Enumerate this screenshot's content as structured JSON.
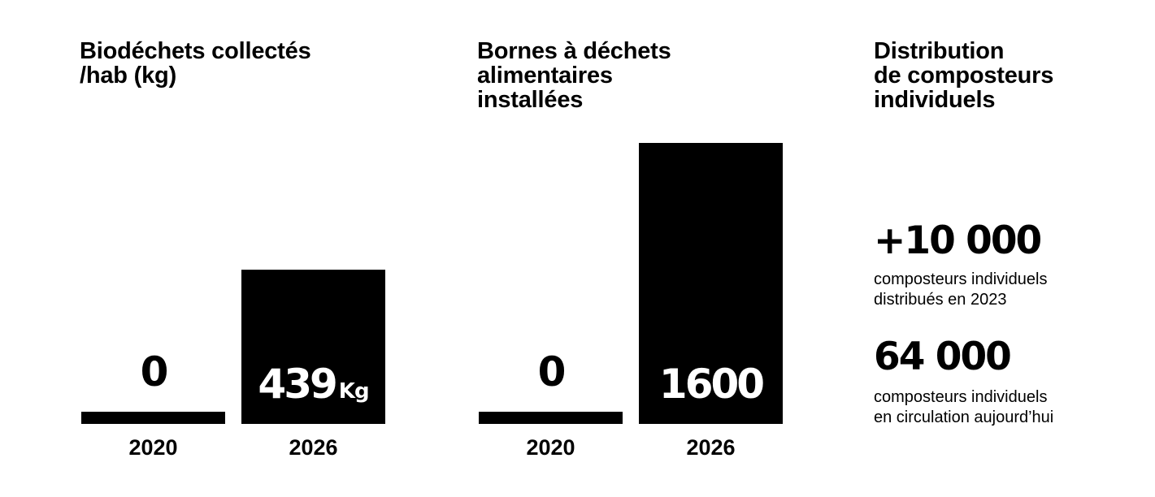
{
  "chart_data": [
    {
      "type": "bar",
      "title_lines": [
        "Biodéchets collectés",
        "/hab (kg)"
      ],
      "categories": [
        "2020",
        "2026"
      ],
      "values": [
        0,
        439
      ],
      "value_labels": [
        "0",
        "439"
      ],
      "unit": "Kg",
      "ylim": [
        0,
        800
      ],
      "grid": false,
      "legend": "none",
      "bar_color": "#000000"
    },
    {
      "type": "bar",
      "title_lines": [
        "Bornes à déchets",
        "alimentaires",
        "installées"
      ],
      "categories": [
        "2020",
        "2026"
      ],
      "values": [
        0,
        1600
      ],
      "value_labels": [
        "0",
        "1600"
      ],
      "unit": "",
      "ylim": [
        0,
        1600
      ],
      "grid": false,
      "legend": "none",
      "bar_color": "#000000"
    }
  ],
  "distribution": {
    "title_lines": [
      "Distribution",
      "de composteurs",
      "individuels"
    ],
    "stats": [
      {
        "value": "+10 000",
        "desc_lines": [
          "composteurs individuels",
          "distribués en 2023"
        ]
      },
      {
        "value": "64 000",
        "desc_lines": [
          "composteurs individuels",
          "en circulation aujourd’hui"
        ]
      }
    ]
  }
}
